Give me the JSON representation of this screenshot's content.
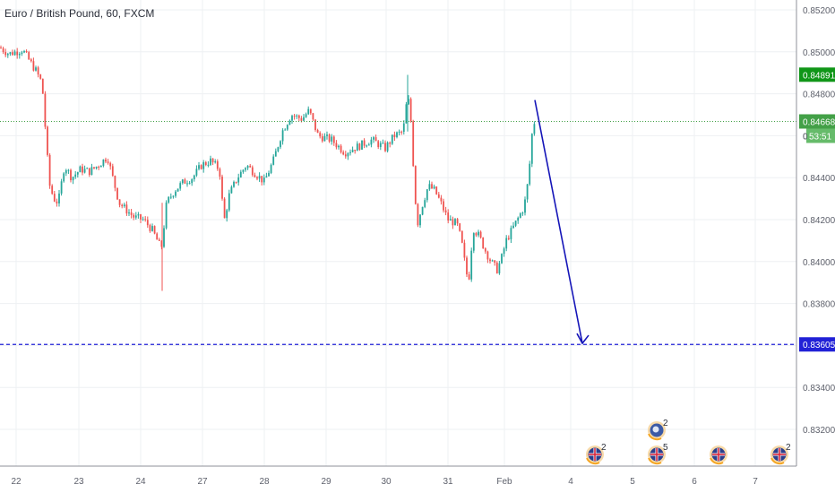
{
  "chart_data": {
    "type": "candlestick",
    "title": "Euro / British Pound, 60, FXCM",
    "y_ticks": [
      "0.85200",
      "0.85000",
      "0.84800",
      "0.84600",
      "0.84400",
      "0.84200",
      "0.84000",
      "0.83800",
      "0.83600",
      "0.83400",
      "0.83200"
    ],
    "x_ticks": [
      "22",
      "23",
      "24",
      "27",
      "28",
      "29",
      "30",
      "31",
      "Feb",
      "4",
      "5",
      "6",
      "7"
    ],
    "ylim": [
      0.8305,
      0.8525
    ],
    "grid": true,
    "colors": {
      "up": "#26a69a",
      "down": "#ef5350",
      "arrow": "#1515b8",
      "target": "#2121d6",
      "current": "#43a047",
      "high_label": "#109618"
    },
    "price_labels": {
      "high": "0.84891",
      "current": "0.84668",
      "countdown": "53:51",
      "target": "0.83605",
      "partial_tick": "0"
    },
    "levels": {
      "high": 0.84891,
      "current": 0.84668,
      "target": 0.83605
    },
    "arrow": {
      "from": [
        "Feb",
        0.8477
      ],
      "to": [
        "4",
        0.8361
      ]
    },
    "candle_path": [
      [
        0,
        0.8502
      ],
      [
        10,
        0.8499
      ],
      [
        25,
        0.8501
      ],
      [
        40,
        0.8491
      ],
      [
        47,
        0.8485
      ],
      [
        52,
        0.8455
      ],
      [
        55,
        0.8437
      ],
      [
        60,
        0.843
      ],
      [
        65,
        0.8428
      ],
      [
        72,
        0.8446
      ],
      [
        80,
        0.844
      ],
      [
        90,
        0.8444
      ],
      [
        100,
        0.8443
      ],
      [
        110,
        0.8446
      ],
      [
        120,
        0.845
      ],
      [
        127,
        0.8438
      ],
      [
        133,
        0.8428
      ],
      [
        140,
        0.8425
      ],
      [
        150,
        0.8421
      ],
      [
        160,
        0.842
      ],
      [
        170,
        0.8415
      ],
      [
        180,
        0.8406
      ],
      [
        186,
        0.8428
      ],
      [
        195,
        0.8434
      ],
      [
        205,
        0.8438
      ],
      [
        215,
        0.844
      ],
      [
        225,
        0.8446
      ],
      [
        235,
        0.8448
      ],
      [
        245,
        0.8444
      ],
      [
        250,
        0.8419
      ],
      [
        256,
        0.8432
      ],
      [
        265,
        0.844
      ],
      [
        275,
        0.8446
      ],
      [
        285,
        0.8442
      ],
      [
        295,
        0.8438
      ],
      [
        305,
        0.8448
      ],
      [
        315,
        0.8462
      ],
      [
        325,
        0.847
      ],
      [
        337,
        0.8468
      ],
      [
        345,
        0.8472
      ],
      [
        355,
        0.846
      ],
      [
        370,
        0.8458
      ],
      [
        385,
        0.8452
      ],
      [
        400,
        0.8455
      ],
      [
        415,
        0.8458
      ],
      [
        430,
        0.8454
      ],
      [
        440,
        0.846
      ],
      [
        450,
        0.8462
      ],
      [
        455,
        0.848
      ],
      [
        460,
        0.8462
      ],
      [
        462,
        0.8437
      ],
      [
        466,
        0.8418
      ],
      [
        472,
        0.8428
      ],
      [
        478,
        0.8436
      ],
      [
        485,
        0.8434
      ],
      [
        492,
        0.8428
      ],
      [
        500,
        0.842
      ],
      [
        510,
        0.8418
      ],
      [
        515,
        0.841
      ],
      [
        520,
        0.8396
      ],
      [
        523,
        0.839
      ],
      [
        528,
        0.8416
      ],
      [
        535,
        0.8412
      ],
      [
        542,
        0.8405
      ],
      [
        548,
        0.84
      ],
      [
        555,
        0.8396
      ],
      [
        560,
        0.8402
      ],
      [
        565,
        0.841
      ],
      [
        575,
        0.8418
      ],
      [
        585,
        0.8426
      ],
      [
        590,
        0.844
      ],
      [
        594,
        0.8462
      ],
      [
        598,
        0.8468
      ]
    ],
    "events": [
      {
        "x_label": "4",
        "count": "2",
        "flag": "uk"
      },
      {
        "x_label": "5",
        "count": "5",
        "flag": "uk"
      },
      {
        "x_label": "5",
        "count": "2",
        "flag": "cb"
      },
      {
        "x_label": "6",
        "count": "",
        "flag": "uk"
      },
      {
        "x_label": "7",
        "count": "2",
        "flag": "uk"
      }
    ]
  }
}
